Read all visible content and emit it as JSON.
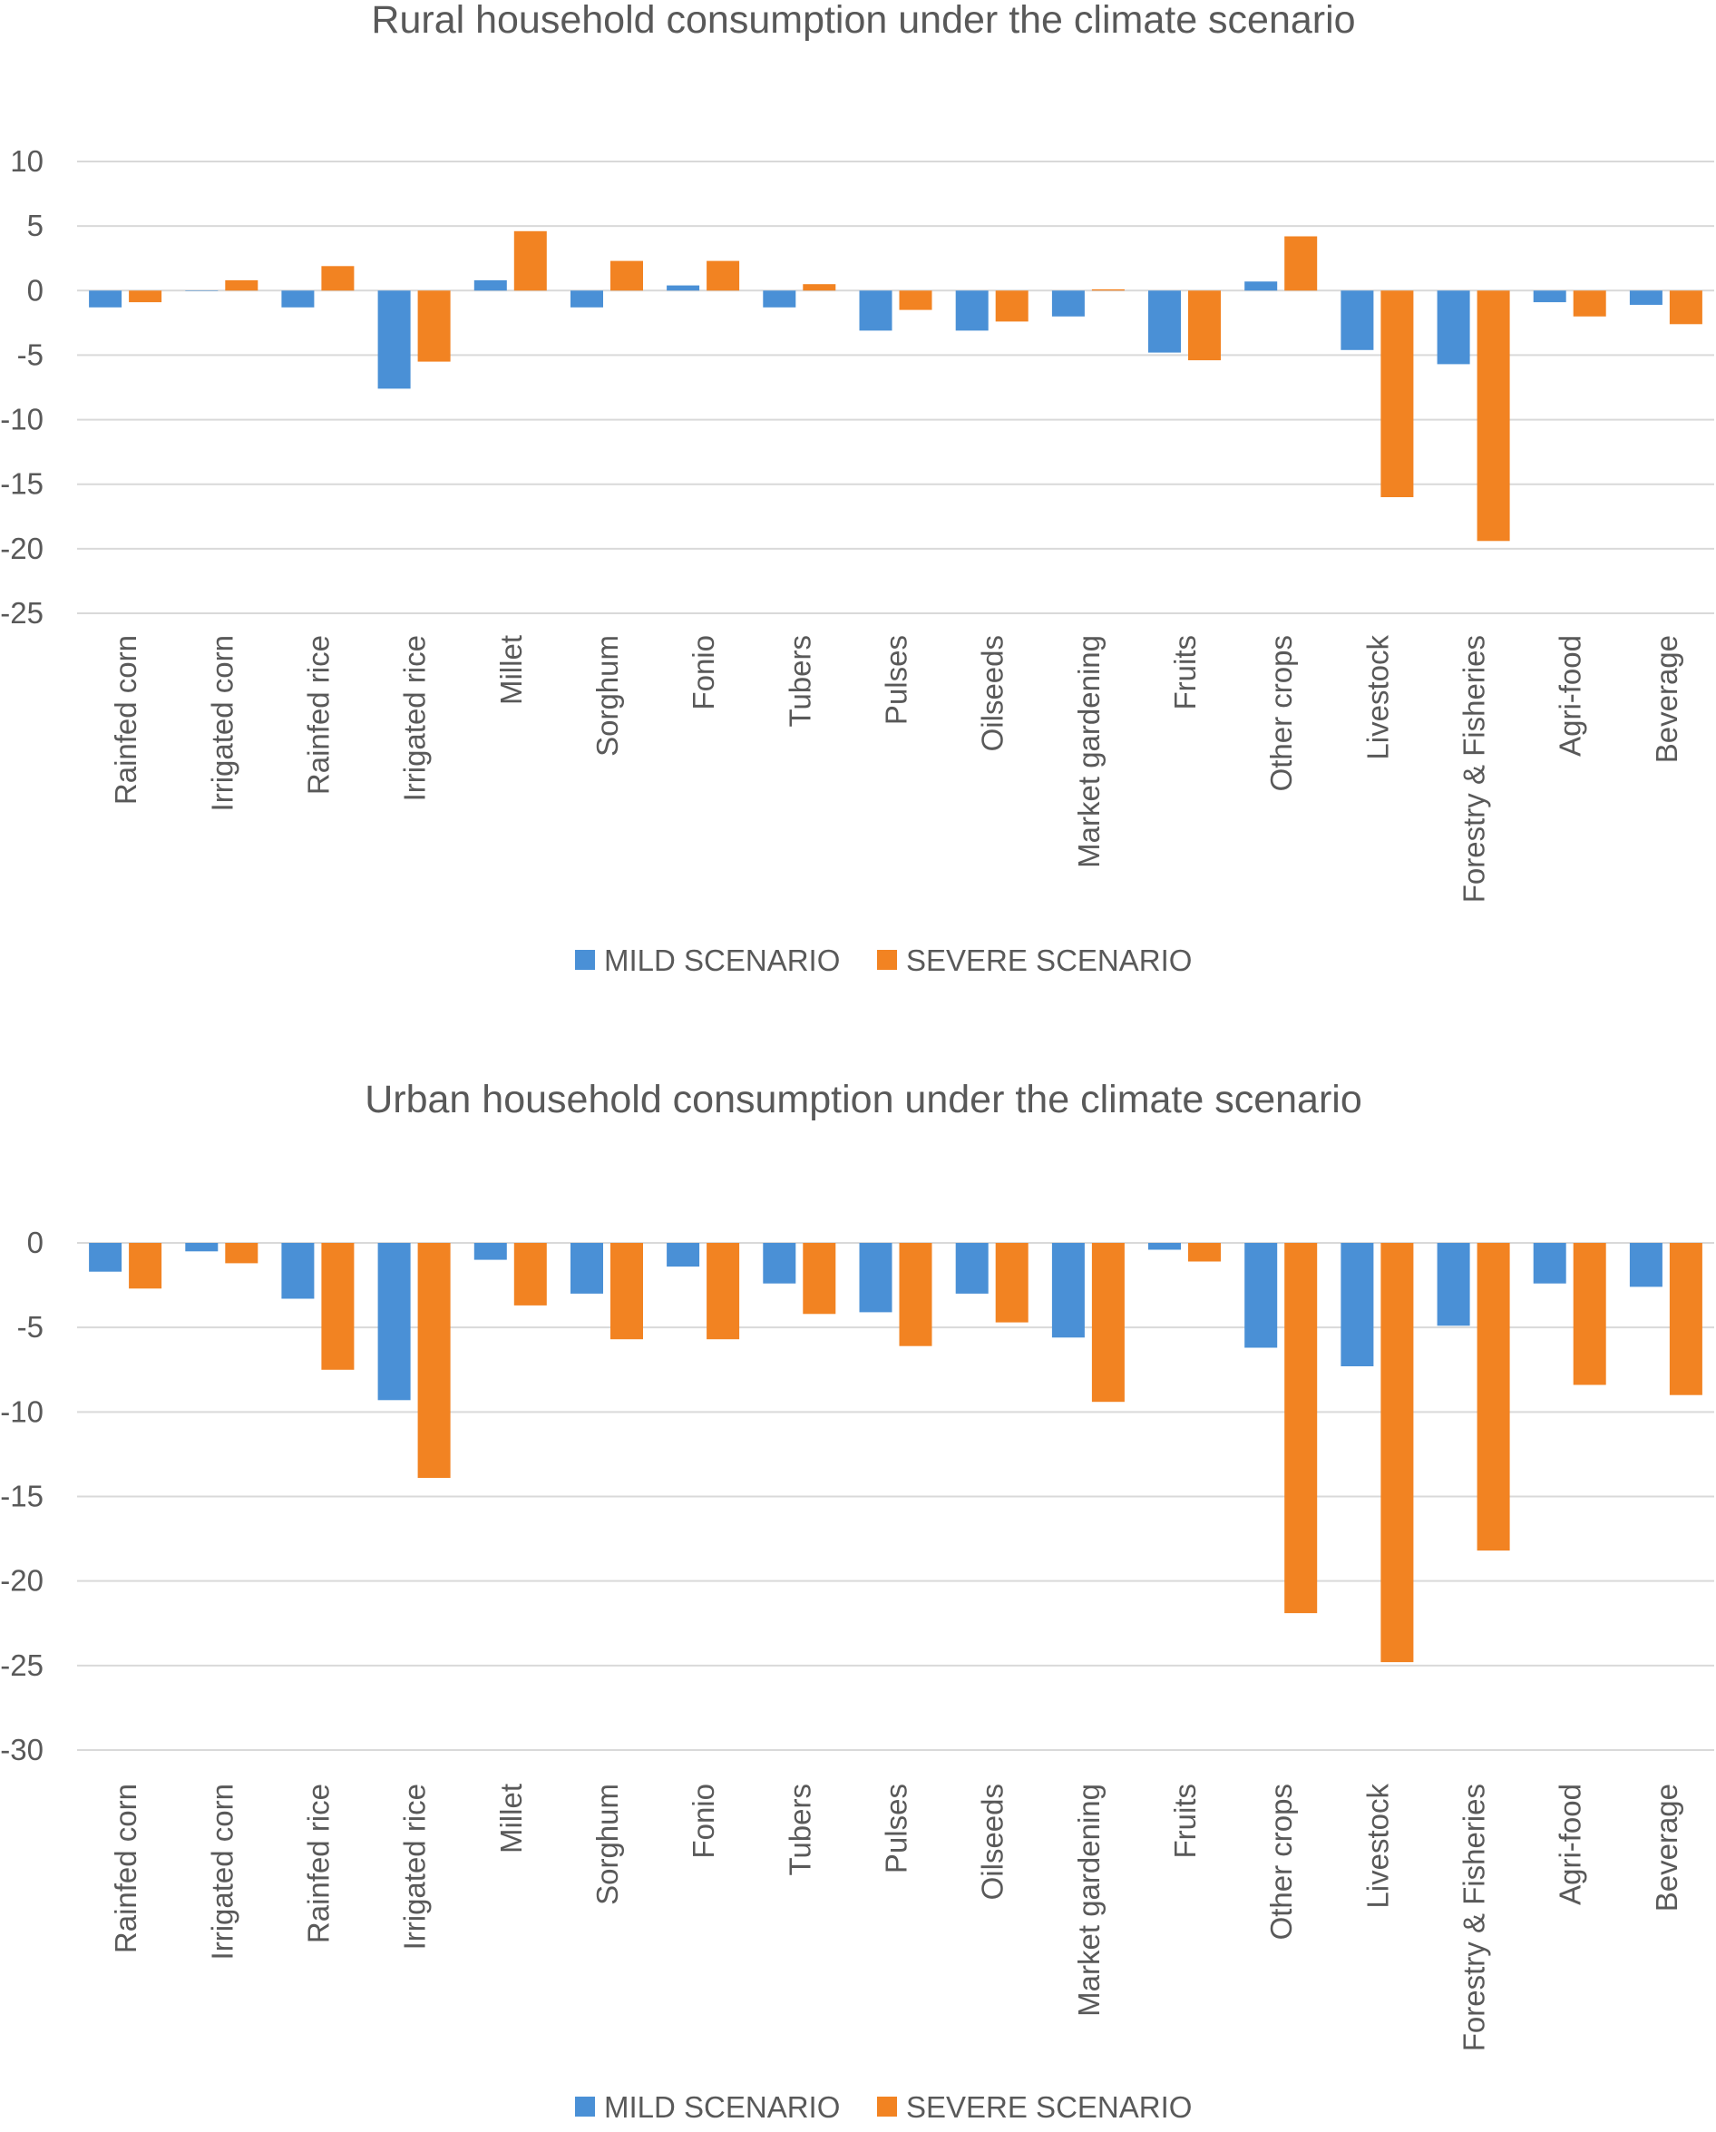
{
  "colors": {
    "mild": "#4a90d6",
    "severe": "#f28322",
    "grid": "#d9d9d9",
    "text": "#595959"
  },
  "chart_data": [
    {
      "id": "rural",
      "type": "bar",
      "title": "Rural household consumption under the climate scenario",
      "xlabel": "",
      "ylabel": "",
      "ylim": [
        -25,
        10
      ],
      "yticks": [
        10,
        5,
        0,
        -5,
        -10,
        -15,
        -20,
        -25
      ],
      "grid": true,
      "legend_position": "bottom",
      "categories": [
        "Rainfed corn",
        "Irrigated corn",
        "Rainfed rice",
        "Irrigated rice",
        "Millet",
        "Sorghum",
        "Fonio",
        "Tubers",
        "Pulses",
        "Oilseeds",
        "Market gardening",
        "Fruits",
        "Other crops",
        "Livestock",
        "Forestry & Fisheries",
        "Agri-food",
        "Beverage"
      ],
      "series": [
        {
          "name": "MILD SCENARIO",
          "color_key": "mild",
          "values": [
            -1.3,
            0,
            -1.3,
            -7.6,
            0.8,
            -1.3,
            0.4,
            -1.3,
            -3.1,
            -3.1,
            -2.0,
            -4.8,
            0.7,
            -4.6,
            -5.7,
            -0.9,
            -1.1
          ]
        },
        {
          "name": "SEVERE SCENARIO",
          "color_key": "severe",
          "values": [
            -0.9,
            0.8,
            1.9,
            -5.5,
            4.6,
            2.3,
            2.3,
            0.5,
            -1.5,
            -2.4,
            0.1,
            -5.4,
            4.2,
            -16.0,
            -19.4,
            -2.0,
            -2.6
          ]
        }
      ]
    },
    {
      "id": "urban",
      "type": "bar",
      "title": "Urban household consumption under the climate scenario",
      "xlabel": "",
      "ylabel": "",
      "ylim": [
        -30,
        0
      ],
      "yticks": [
        0,
        -5,
        -10,
        -15,
        -20,
        -25,
        -30
      ],
      "grid": true,
      "legend_position": "bottom",
      "categories": [
        "Rainfed corn",
        "Irrigated corn",
        "Rainfed rice",
        "Irrigated rice",
        "Millet",
        "Sorghum",
        "Fonio",
        "Tubers",
        "Pulses",
        "Oilseeds",
        "Market gardening",
        "Fruits",
        "Other crops",
        "Livestock",
        "Forestry & Fisheries",
        "Agri-food",
        "Beverage"
      ],
      "series": [
        {
          "name": "MILD SCENARIO",
          "color_key": "mild",
          "values": [
            -1.7,
            -0.5,
            -3.3,
            -9.3,
            -1.0,
            -3.0,
            -1.4,
            -2.4,
            -4.1,
            -3.0,
            -5.6,
            -0.4,
            -6.2,
            -7.3,
            -4.9,
            -2.4,
            -2.6
          ]
        },
        {
          "name": "SEVERE SCENARIO",
          "color_key": "severe",
          "values": [
            -2.7,
            -1.2,
            -7.5,
            -13.9,
            -3.7,
            -5.7,
            -5.7,
            -4.2,
            -6.1,
            -4.7,
            -9.4,
            -1.1,
            -21.9,
            -24.8,
            -18.2,
            -8.4,
            -9.0
          ]
        }
      ]
    }
  ]
}
